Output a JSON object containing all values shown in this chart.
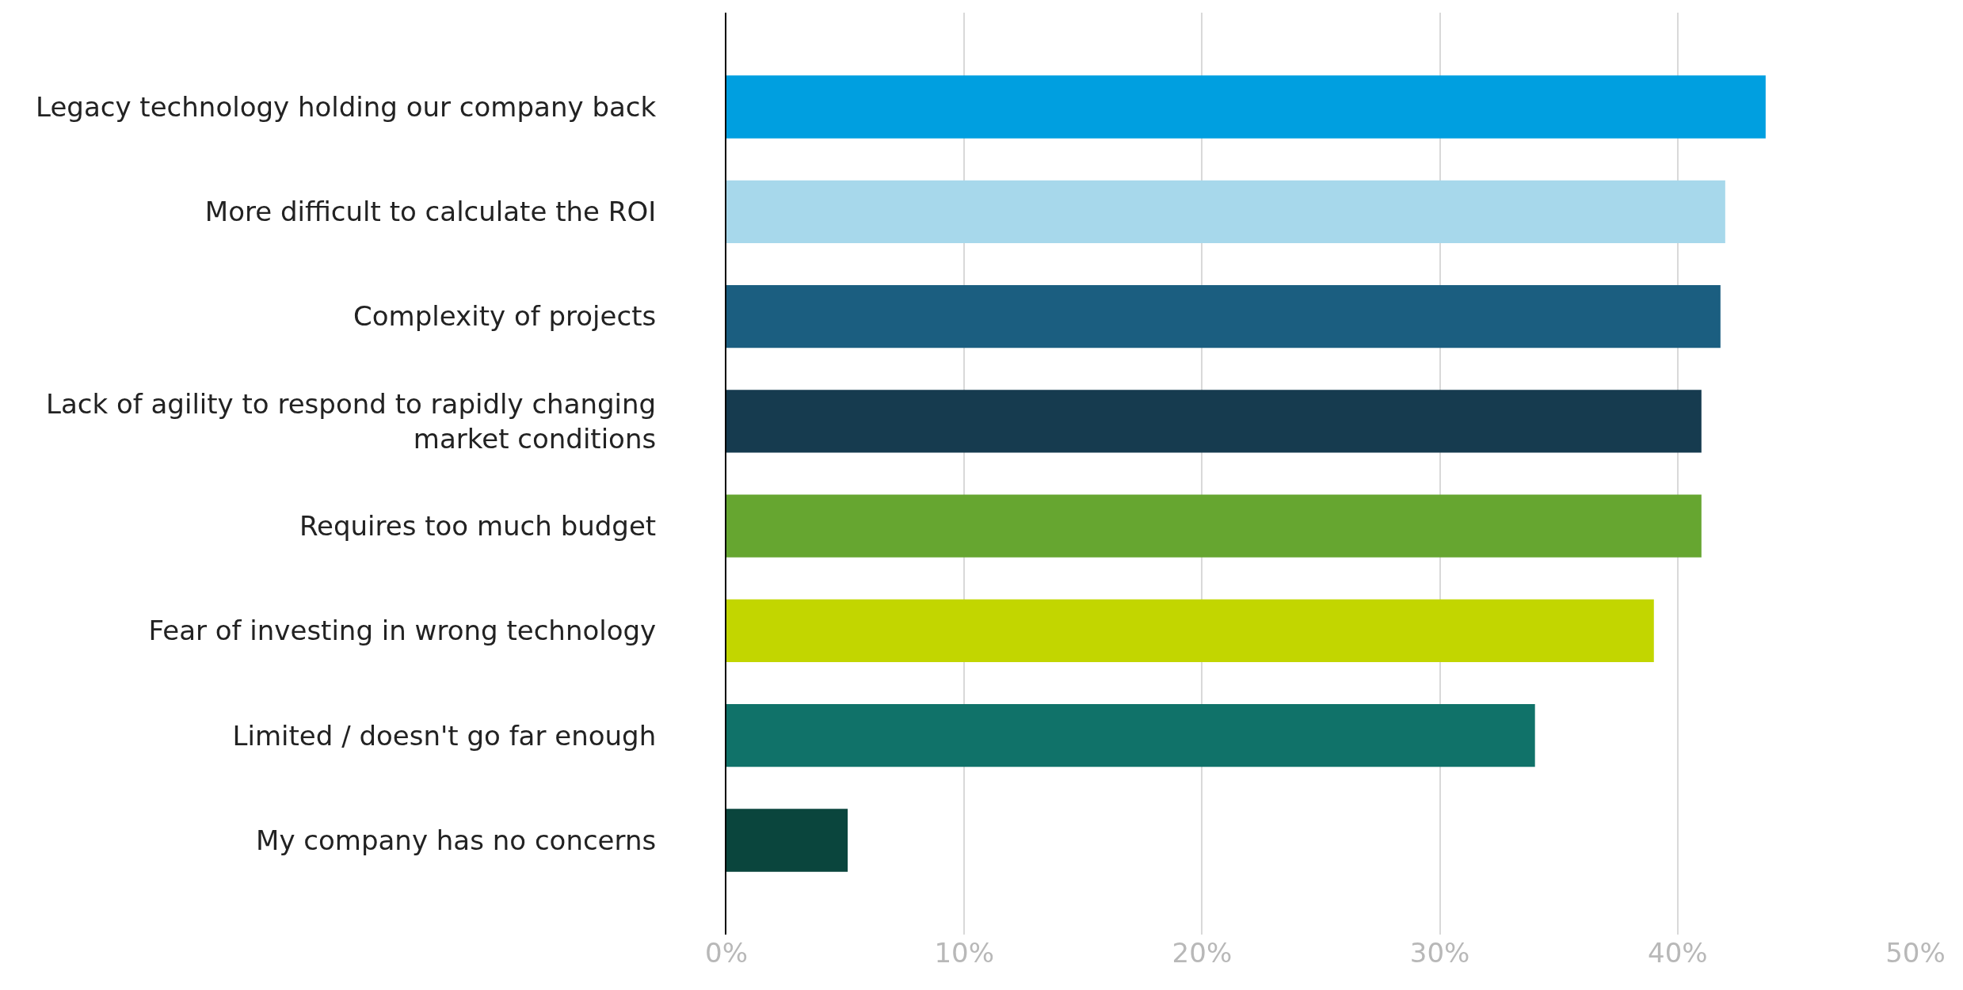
{
  "chart_data": {
    "type": "bar",
    "orientation": "horizontal",
    "categories": [
      "Legacy technology holding our company back",
      "More difficult to calculate the ROI",
      "Complexity of projects",
      "Lack of agility to respond to rapidly changing market conditions",
      "Requires too much budget",
      "Fear of investing in wrong technology",
      "Limited / doesn't go far enough",
      "My company has no concerns"
    ],
    "values": [
      43.7,
      42,
      41.8,
      41,
      41,
      39,
      34,
      5.1
    ],
    "colors": [
      "#009fe0",
      "#a7d8eb",
      "#1b5e80",
      "#163b4f",
      "#66a630",
      "#c2d600",
      "#107269",
      "#0a453d"
    ],
    "xlim": [
      0,
      50
    ],
    "xticks": [
      {
        "value": 0,
        "label": "0%"
      },
      {
        "value": 10,
        "label": "10%"
      },
      {
        "value": 20,
        "label": "20%"
      },
      {
        "value": 30,
        "label": "30%"
      },
      {
        "value": 40,
        "label": "40%"
      },
      {
        "value": 50,
        "label": "50%"
      }
    ],
    "grid": "x"
  }
}
